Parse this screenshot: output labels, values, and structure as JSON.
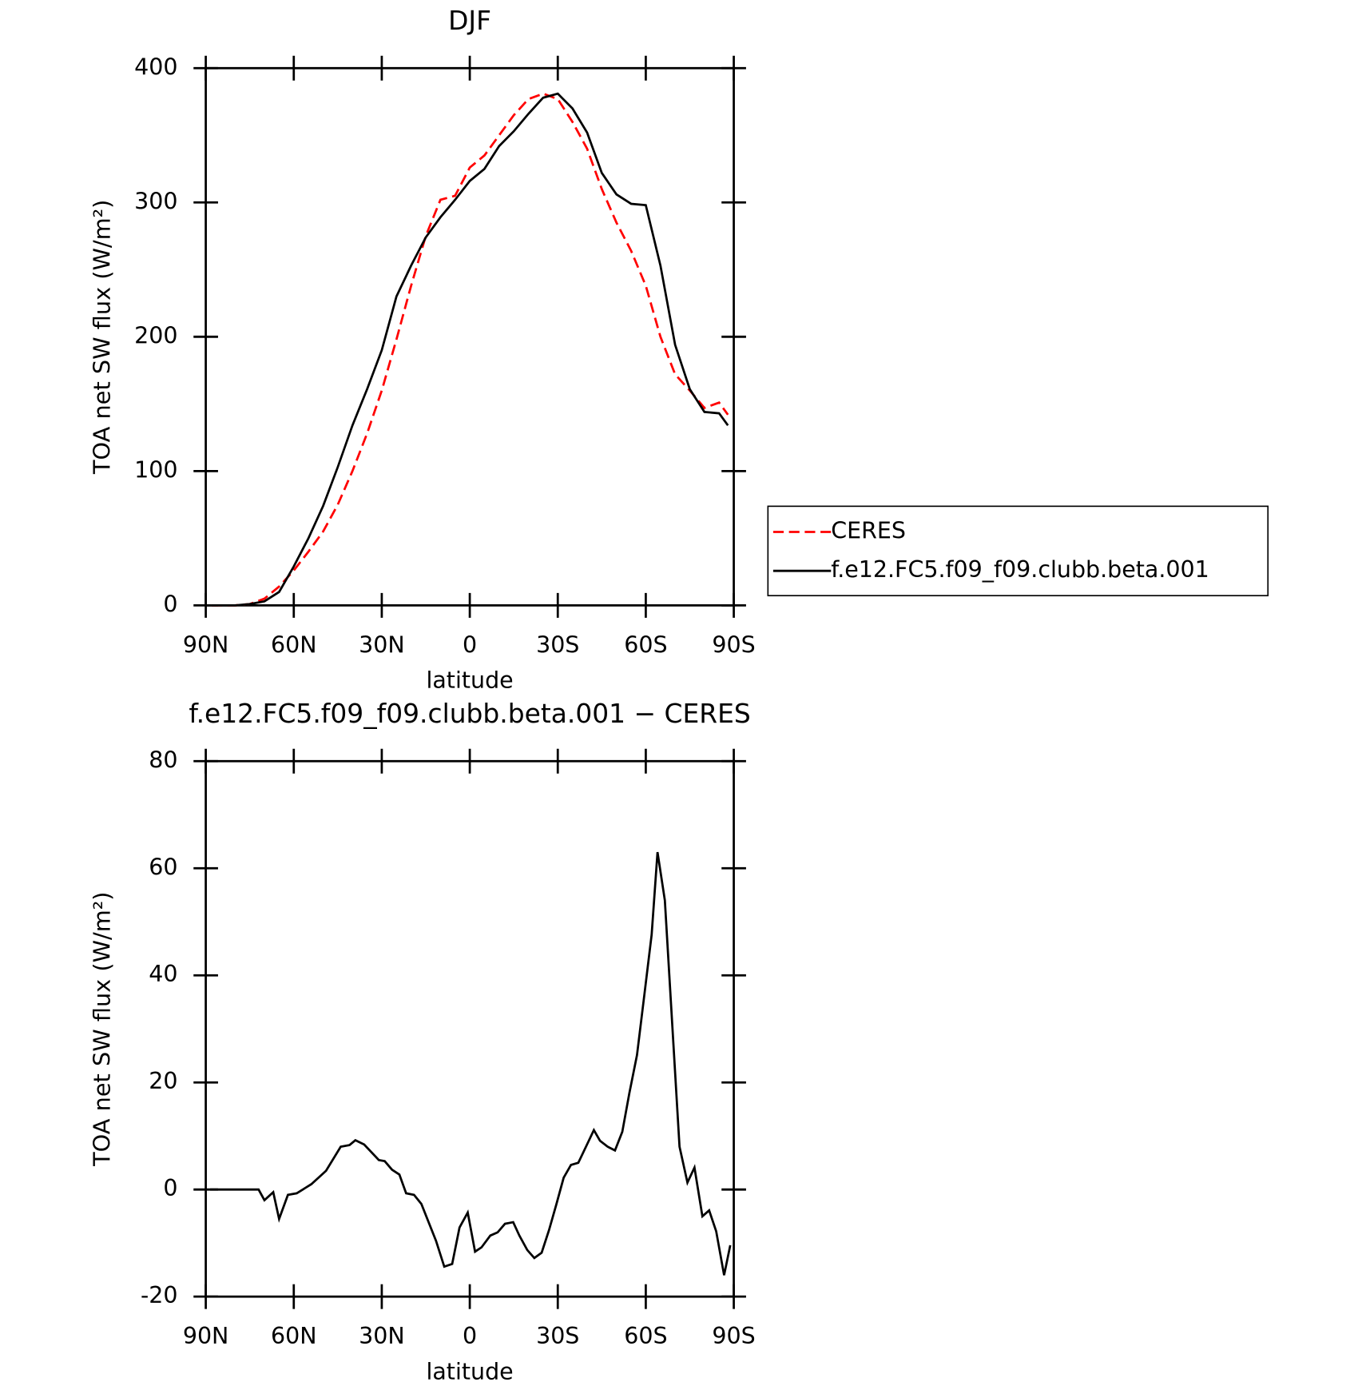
{
  "chart_data": [
    {
      "type": "line",
      "title": "DJF",
      "xlabel": "latitude",
      "ylabel": "TOA net SW flux (W/m²)",
      "x": [
        88,
        80,
        75,
        70,
        65,
        60,
        55,
        50,
        45,
        40,
        35,
        30,
        25,
        20,
        15,
        10,
        5,
        0,
        -5,
        -10,
        -15,
        -20,
        -25,
        -30,
        -35,
        -40,
        -45,
        -50,
        -55,
        -60,
        -65,
        -70,
        -75,
        -80,
        -85,
        -88
      ],
      "xlim": [
        90,
        -90
      ],
      "xticks": [
        {
          "value": 90,
          "label": "90N"
        },
        {
          "value": 60,
          "label": "60N"
        },
        {
          "value": 30,
          "label": "30N"
        },
        0,
        {
          "value": -30,
          "label": "30S"
        },
        {
          "value": -60,
          "label": "60S"
        },
        {
          "value": -90,
          "label": "90S"
        }
      ],
      "ylim": [
        0,
        400
      ],
      "yticks": [
        0,
        100,
        200,
        300,
        400
      ],
      "legend": "outside-right",
      "series": [
        {
          "name": "CERES",
          "color": "#ff0000",
          "dashed": true,
          "values": [
            0,
            0,
            1,
            5,
            14,
            26,
            40,
            55,
            75,
            100,
            128,
            160,
            198,
            238,
            275,
            302,
            305,
            326,
            335,
            350,
            365,
            377,
            381,
            377,
            360,
            340,
            310,
            285,
            264,
            238,
            200,
            172,
            160,
            147,
            151,
            142
          ]
        },
        {
          "name": "f.e12.FC5.f09_f09.clubb.beta.001",
          "color": "#000000",
          "dashed": false,
          "values": [
            0,
            0,
            1,
            3,
            10,
            29,
            50,
            74,
            103,
            134,
            161,
            190,
            230,
            253,
            274,
            289,
            302,
            316,
            325,
            342,
            353,
            366,
            378,
            381,
            370,
            352,
            322,
            306,
            299,
            298,
            253,
            194,
            161,
            144,
            143,
            134
          ]
        }
      ]
    },
    {
      "type": "line",
      "title": "f.e12.FC5.f09_f09.clubb.beta.001 − CERES",
      "xlabel": "latitude",
      "ylabel": "TOA net SW flux (W/m²)",
      "x": [
        88.5,
        72,
        70,
        67,
        65,
        62,
        59,
        54,
        49,
        44,
        41,
        39,
        36,
        31,
        29,
        26.5,
        24,
        21.7,
        19,
        16.5,
        11.5,
        8.7,
        6,
        3.5,
        0.7,
        -1.8,
        -4,
        -7,
        -9.5,
        -12,
        -14.8,
        -16.9,
        -19.6,
        -22,
        -24.5,
        -27,
        -29.5,
        -32,
        -34.5,
        -37,
        -39.7,
        -42.3,
        -44.4,
        -47,
        -49.5,
        -52,
        -54.4,
        -57,
        -59.5,
        -62,
        -64,
        -66.5,
        -71.5,
        -74.2,
        -76.6,
        -79.3,
        -81.6,
        -84,
        -86.7,
        -88.8
      ],
      "xlim": [
        90,
        -90
      ],
      "xticks": [
        {
          "value": 90,
          "label": "90N"
        },
        {
          "value": 60,
          "label": "60N"
        },
        {
          "value": 30,
          "label": "30N"
        },
        0,
        {
          "value": -30,
          "label": "30S"
        },
        {
          "value": -60,
          "label": "60S"
        },
        {
          "value": -90,
          "label": "90S"
        }
      ],
      "ylim": [
        -20,
        80
      ],
      "yticks": [
        -20,
        0,
        20,
        40,
        60,
        80
      ],
      "series": [
        {
          "name": null,
          "color": "#000000",
          "dashed": false,
          "values": [
            0,
            0,
            -2,
            -0.5,
            -5.5,
            -1,
            -0.7,
            1,
            3.5,
            8,
            8.3,
            9.2,
            8.4,
            5.5,
            5.3,
            3.7,
            2.8,
            -0.7,
            -1,
            -2.7,
            -9.6,
            -14.4,
            -13.9,
            -7.1,
            -4.3,
            -11.6,
            -10.8,
            -8.6,
            -8,
            -6.4,
            -6.1,
            -8.6,
            -11.3,
            -12.8,
            -11.8,
            -7.6,
            -2.8,
            2.2,
            4.6,
            5,
            8.1,
            11.1,
            9.1,
            8,
            7.3,
            10.8,
            18,
            25.1,
            36.3,
            47.6,
            63,
            54,
            8,
            1.3,
            4.1,
            -5,
            -3.9,
            -7.8,
            -16,
            -10.4
          ]
        }
      ]
    }
  ]
}
